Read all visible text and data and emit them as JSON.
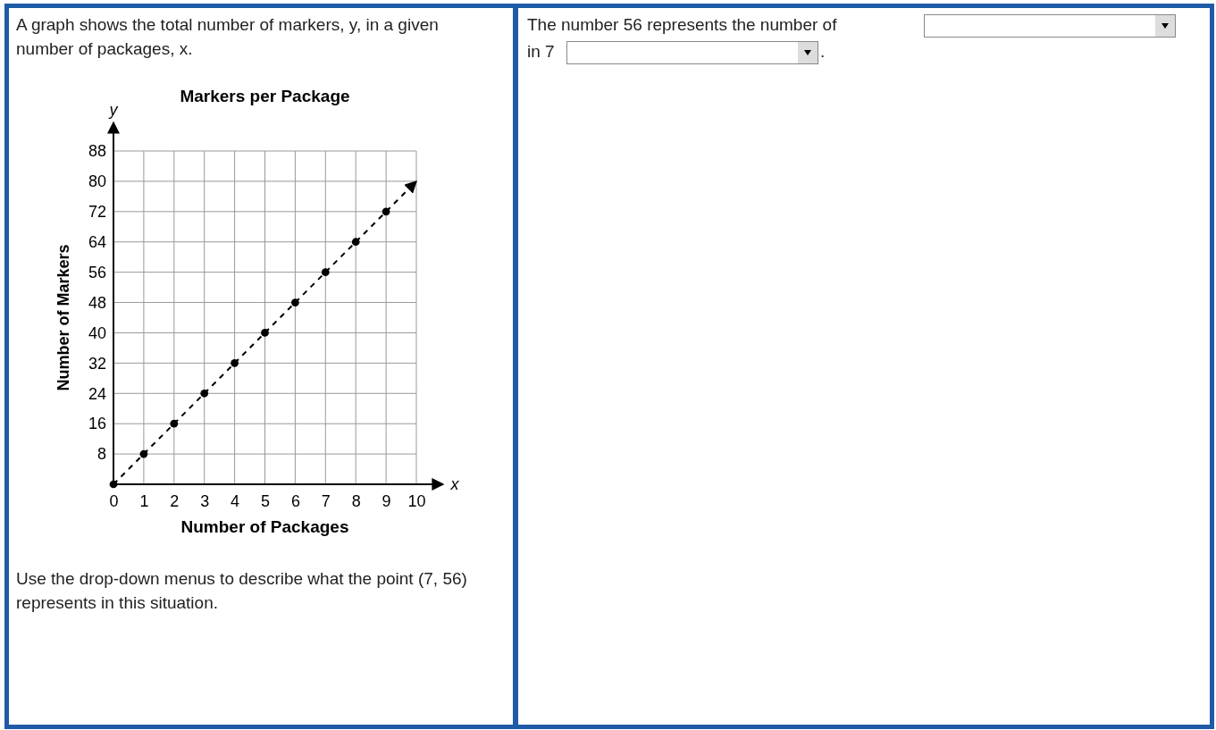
{
  "chart_data": {
    "type": "scatter",
    "title": "Markers per Package",
    "xlabel": "Number of Packages",
    "ylabel": "Number of Markers",
    "annotations": [
      "A graph shows the total number of markers, y, in a given number of packages, x.",
      "Use the drop-down menus to describe what the point (7, 56) represents in this situation.",
      "The number 56 represents the number of",
      "in 7",
      ".",
      "y",
      "x"
    ],
    "xlim": [
      0,
      10
    ],
    "ylim": [
      0,
      88
    ],
    "xticks": [
      0,
      1,
      2,
      3,
      4,
      5,
      6,
      7,
      8,
      9,
      10
    ],
    "yticks": [
      8,
      16,
      24,
      32,
      40,
      48,
      56,
      64,
      72,
      80,
      88
    ],
    "grid": true,
    "series": [
      {
        "type": "line",
        "color": "#000000",
        "x": [
          0,
          10
        ],
        "values": [
          0,
          80
        ],
        "line_style": "dashed",
        "marker": "none"
      },
      {
        "color": "#000000",
        "x": [
          0,
          1,
          2,
          3,
          4,
          5,
          6,
          7,
          8,
          9
        ],
        "values": [
          0,
          8,
          16,
          24,
          32,
          40,
          48,
          56,
          64,
          72
        ],
        "marker": "circle"
      }
    ]
  }
}
